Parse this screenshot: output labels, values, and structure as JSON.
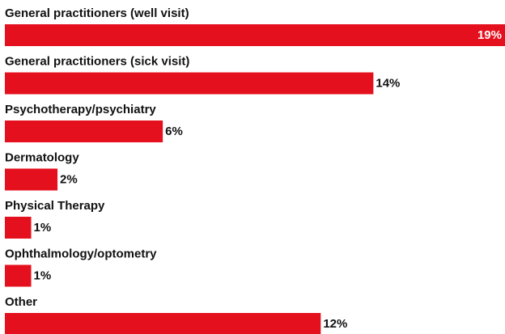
{
  "chart_data": {
    "type": "bar",
    "orientation": "horizontal",
    "categories": [
      "General practitioners (well visit)",
      "General practitioners (sick visit)",
      "Psychotherapy/psychiatry",
      "Dermatology",
      "Physical Therapy",
      "Ophthalmology/optometry",
      "Other"
    ],
    "values": [
      19,
      14,
      6,
      2,
      1,
      1,
      12
    ],
    "value_labels": [
      "19%",
      "14%",
      "6%",
      "2%",
      "1%",
      "1%",
      "12%"
    ],
    "color": "#e5101e"
  }
}
